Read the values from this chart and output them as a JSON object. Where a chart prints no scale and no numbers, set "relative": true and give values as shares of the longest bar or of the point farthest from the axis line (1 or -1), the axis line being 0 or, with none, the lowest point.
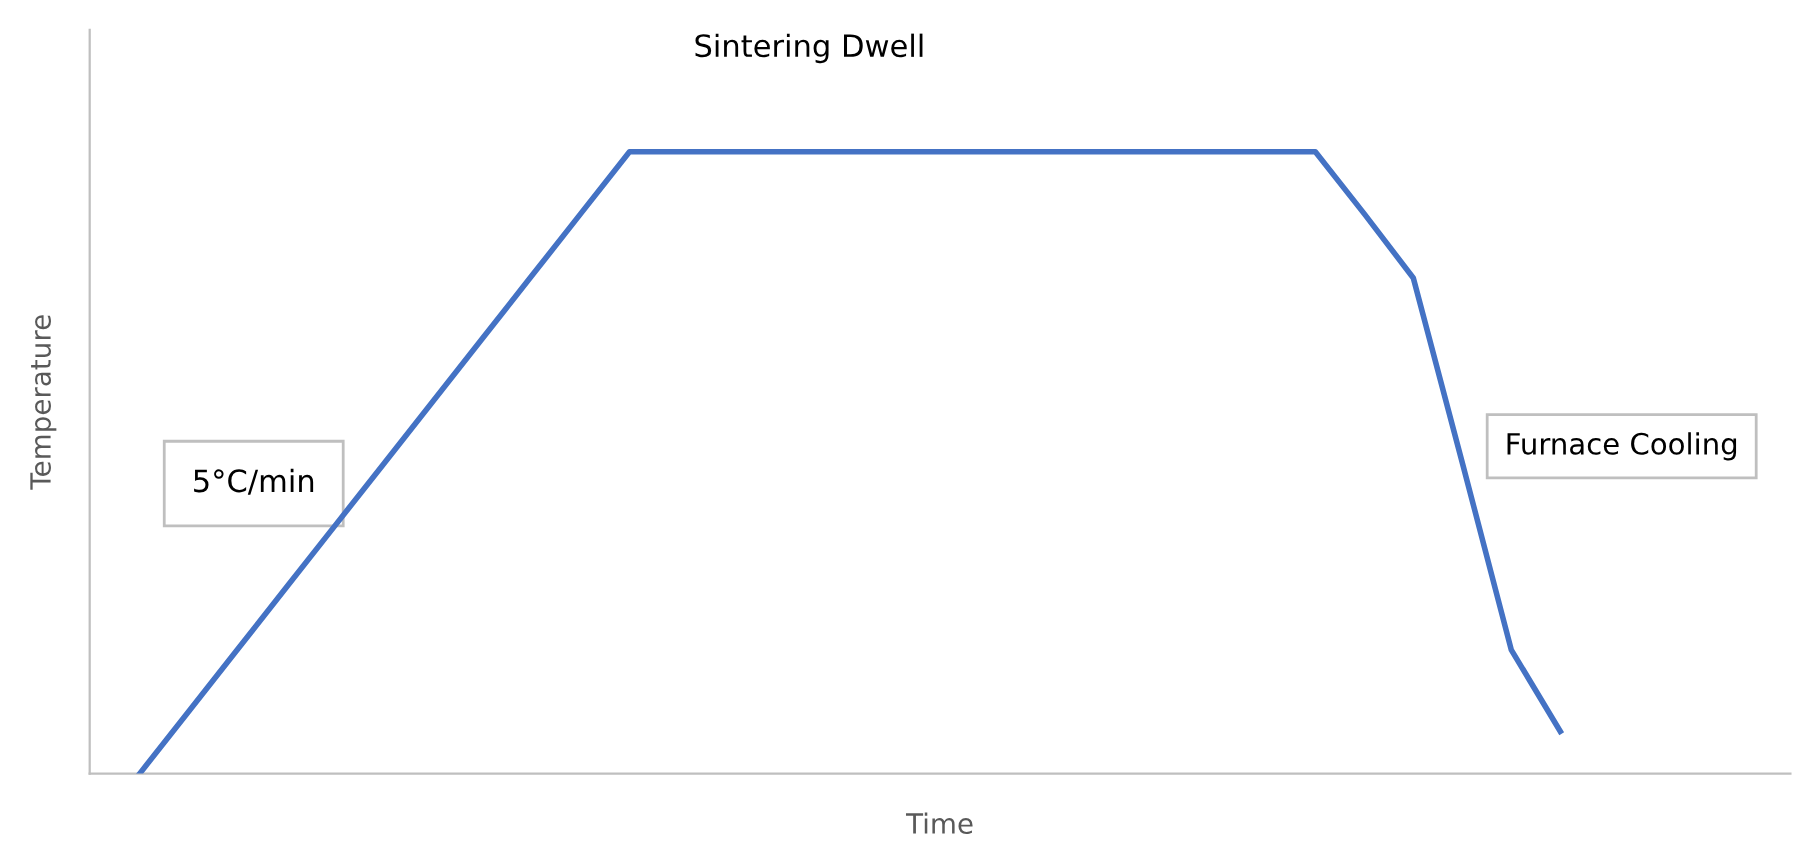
{
  "chart_data": {
    "type": "line",
    "relative": true,
    "xlabel": "Time",
    "ylabel": "Temperature",
    "categories": [
      null,
      null,
      null,
      null,
      null,
      null,
      null,
      null,
      null,
      null,
      null,
      null,
      null,
      null,
      null,
      null,
      null,
      null,
      null,
      null,
      null,
      null,
      null,
      null,
      null,
      null,
      null,
      null,
      null,
      null
    ],
    "tick_labels": false,
    "series": [
      {
        "color": "#4472c4",
        "values": [
          0,
          0.1,
          0.2,
          0.3,
          0.4,
          0.5,
          0.6,
          0.7,
          0.8,
          0.9,
          1,
          1,
          1,
          1,
          1,
          1,
          1,
          1,
          1,
          1,
          1,
          1,
          1,
          1,
          1,
          0.9,
          0.797,
          0.5,
          0.199,
          0.068
        ]
      }
    ],
    "annotations": [
      "Sintering Dwell",
      "5°C/min",
      "Furnace Cooling"
    ],
    "marker": "none",
    "line_style": "solid"
  }
}
